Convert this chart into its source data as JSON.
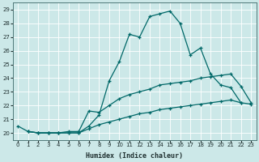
{
  "xlabel": "Humidex (Indice chaleur)",
  "bg_color": "#cce8e8",
  "grid_color": "#b8d8d8",
  "line_color": "#006868",
  "xlim": [
    -0.5,
    23.5
  ],
  "ylim": [
    19.5,
    29.5
  ],
  "xticks": [
    0,
    1,
    2,
    3,
    4,
    5,
    6,
    7,
    8,
    9,
    10,
    11,
    12,
    13,
    14,
    15,
    16,
    17,
    18,
    19,
    20,
    21,
    22,
    23
  ],
  "yticks": [
    20,
    21,
    22,
    23,
    24,
    25,
    26,
    27,
    28,
    29
  ],
  "curve1_x": [
    0,
    1,
    2,
    3,
    4,
    5,
    6,
    7,
    8,
    9,
    10,
    11,
    12,
    13,
    14,
    15,
    16,
    17,
    18,
    19,
    20,
    21,
    22
  ],
  "curve1_y": [
    20.5,
    20.1,
    20.0,
    20.0,
    20.0,
    20.0,
    20.0,
    20.5,
    21.3,
    23.8,
    25.2,
    27.2,
    27.0,
    28.5,
    28.7,
    28.9,
    28.0,
    25.7,
    26.2,
    24.3,
    23.5,
    23.3,
    22.2
  ],
  "curve2_x": [
    1,
    2,
    3,
    4,
    5,
    6,
    7,
    8,
    9,
    10,
    11,
    12,
    13,
    14,
    15,
    16,
    17,
    18,
    19,
    20,
    21,
    22,
    23
  ],
  "curve2_y": [
    20.1,
    20.0,
    20.0,
    20.0,
    20.1,
    20.1,
    21.6,
    21.5,
    22.0,
    22.5,
    22.8,
    23.0,
    23.2,
    23.5,
    23.6,
    23.7,
    23.8,
    24.0,
    24.1,
    24.2,
    24.3,
    23.4,
    22.2
  ],
  "curve3_x": [
    1,
    2,
    3,
    4,
    5,
    6,
    7,
    8,
    9,
    10,
    11,
    12,
    13,
    14,
    15,
    16,
    17,
    18,
    19,
    20,
    21,
    22,
    23
  ],
  "curve3_y": [
    20.1,
    20.0,
    20.0,
    20.0,
    20.0,
    20.0,
    20.3,
    20.6,
    20.8,
    21.0,
    21.2,
    21.4,
    21.5,
    21.7,
    21.8,
    21.9,
    22.0,
    22.1,
    22.2,
    22.3,
    22.4,
    22.2,
    22.1
  ]
}
